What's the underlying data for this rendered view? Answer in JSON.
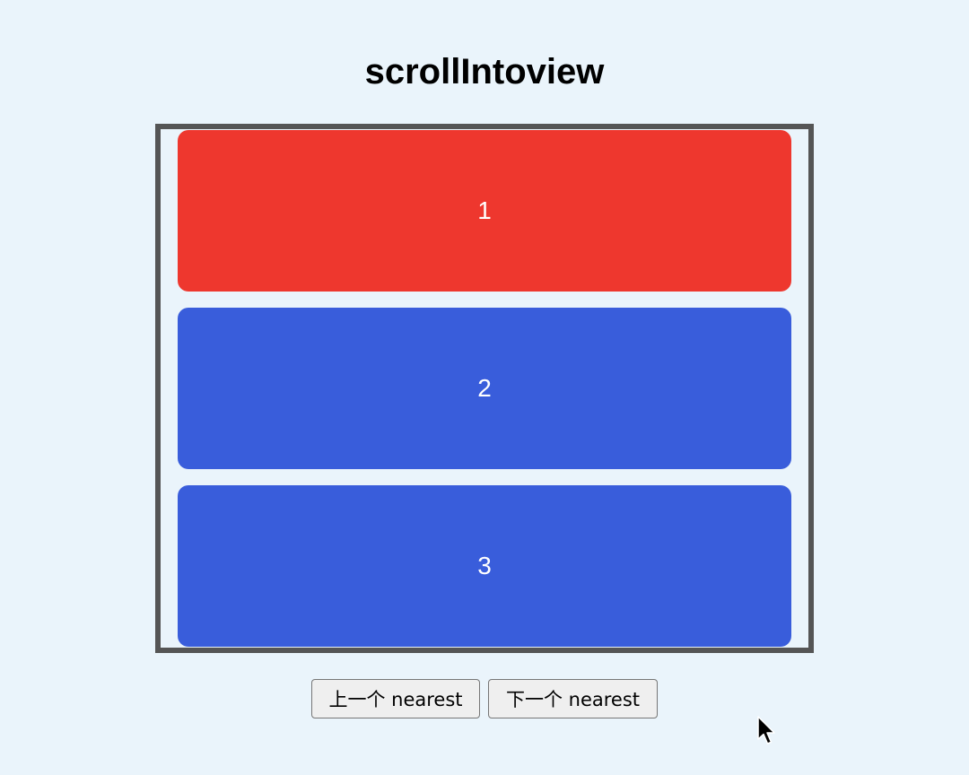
{
  "page": {
    "title": "scrollIntoview"
  },
  "cards": [
    {
      "label": "1",
      "color": "#ee372e",
      "active": true
    },
    {
      "label": "2",
      "color": "#395ddb",
      "active": false
    },
    {
      "label": "3",
      "color": "#395ddb",
      "active": false
    }
  ],
  "controls": {
    "prev_label": "上一个 nearest",
    "next_label": "下一个 nearest"
  },
  "icons": {
    "cursor": "mouse-pointer-icon"
  },
  "colors": {
    "background": "#eaf4fb",
    "active_card": "#ee372e",
    "inactive_card": "#395ddb",
    "frame_border": "#555555"
  }
}
